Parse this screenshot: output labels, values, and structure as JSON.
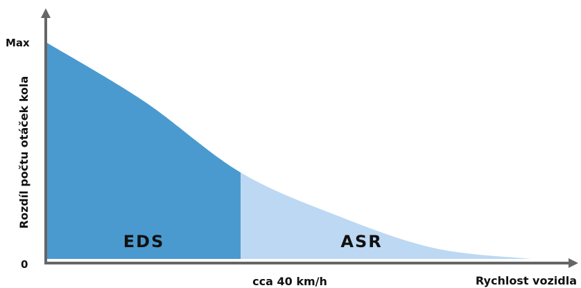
{
  "chart_data": {
    "type": "area",
    "ylabel": "Rozdíl počtu otáček kola",
    "xlabel": "Rychlost vozidla",
    "y_ticks": {
      "max": "Max",
      "zero": "0"
    },
    "x_marker_label": "cca 40 km/h",
    "regions": [
      {
        "name": "EDS",
        "color": "#4a9ad0",
        "x_from": 0,
        "x_to": 40
      },
      {
        "name": "ASR",
        "color": "#bcd8f3",
        "x_from": 40,
        "x_to": 100
      }
    ],
    "curve": [
      {
        "x": 0,
        "y": 1.0
      },
      {
        "x": 20,
        "y": 0.73
      },
      {
        "x": 40,
        "y": 0.4
      },
      {
        "x": 60,
        "y": 0.2
      },
      {
        "x": 80,
        "y": 0.05
      },
      {
        "x": 100,
        "y": 0.0
      }
    ],
    "xlim": [
      0,
      110
    ],
    "ylim": [
      0,
      1
    ]
  }
}
